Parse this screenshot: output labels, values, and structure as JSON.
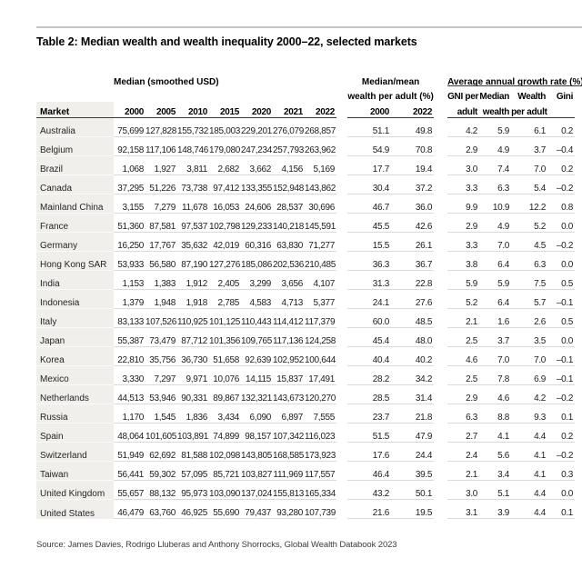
{
  "page": {
    "title": "Table 2: Median wealth and wealth inequality 2000–22, selected markets",
    "source": "Source: James Davies, Rodrigo Lluberas and Anthony Shorrocks, Global Wealth Databook 2023"
  },
  "colors": {
    "market_column_bg": "#f1efec",
    "header_rule": "#3a3a3a",
    "row_separator": "#dcdad7",
    "top_rule": "#c7c6c4"
  },
  "table": {
    "groups": {
      "median": "Median (smoothed USD)",
      "median_mean_line1": "Median/mean",
      "median_mean_line2": "wealth per adult (%)",
      "growth": "Average annual growth rate (%) 2000–22"
    },
    "columns": {
      "market": "Market",
      "median_years": [
        "2000",
        "2005",
        "2010",
        "2015",
        "2020",
        "2021",
        "2022"
      ],
      "mm_years": [
        "2000",
        "2022"
      ],
      "growth_line1": [
        "GNI per",
        "Median",
        "Wealth",
        "Gini"
      ],
      "growth_line2": [
        "adult",
        "wealth",
        "per adult",
        ""
      ]
    },
    "rows": [
      {
        "market": "Australia",
        "median": [
          "75,699",
          "127,828",
          "155,732",
          "185,003",
          "229,201",
          "276,079",
          "268,857"
        ],
        "median_mean": [
          "51.1",
          "49.8"
        ],
        "growth": [
          "4.2",
          "5.9",
          "6.1",
          "0.2"
        ]
      },
      {
        "market": "Belgium",
        "median": [
          "92,158",
          "117,106",
          "148,746",
          "179,080",
          "247,234",
          "257,793",
          "263,962"
        ],
        "median_mean": [
          "54.9",
          "70.8"
        ],
        "growth": [
          "2.9",
          "4.9",
          "3.7",
          "–0.4"
        ]
      },
      {
        "market": "Brazil",
        "median": [
          "1,068",
          "1,927",
          "3,811",
          "2,682",
          "3,662",
          "4,156",
          "5,169"
        ],
        "median_mean": [
          "17.7",
          "19.4"
        ],
        "growth": [
          "3.0",
          "7.4",
          "7.0",
          "0.2"
        ]
      },
      {
        "market": "Canada",
        "median": [
          "37,295",
          "51,226",
          "73,738",
          "97,412",
          "133,355",
          "152,948",
          "143,862"
        ],
        "median_mean": [
          "30.4",
          "37.2"
        ],
        "growth": [
          "3.3",
          "6.3",
          "5.4",
          "–0.2"
        ]
      },
      {
        "market": "Mainland China",
        "median": [
          "3,155",
          "7,279",
          "11,678",
          "16,053",
          "24,606",
          "28,537",
          "30,696"
        ],
        "median_mean": [
          "46.7",
          "36.0"
        ],
        "growth": [
          "9.9",
          "10.9",
          "12.2",
          "0.8"
        ]
      },
      {
        "market": "France",
        "median": [
          "51,360",
          "87,581",
          "97,537",
          "102,798",
          "129,233",
          "140,218",
          "145,591"
        ],
        "median_mean": [
          "45.5",
          "42.6"
        ],
        "growth": [
          "2.9",
          "4.9",
          "5.2",
          "0.0"
        ]
      },
      {
        "market": "Germany",
        "median": [
          "16,250",
          "17,767",
          "35,632",
          "42,019",
          "60,316",
          "63,830",
          "71,277"
        ],
        "median_mean": [
          "15.5",
          "26.1"
        ],
        "growth": [
          "3.3",
          "7.0",
          "4.5",
          "–0.2"
        ]
      },
      {
        "market": "Hong Kong SAR",
        "median": [
          "53,933",
          "56,580",
          "87,190",
          "127,276",
          "185,086",
          "202,536",
          "210,485"
        ],
        "median_mean": [
          "36.3",
          "36.7"
        ],
        "growth": [
          "3.8",
          "6.4",
          "6.3",
          "0.0"
        ]
      },
      {
        "market": "India",
        "median": [
          "1,153",
          "1,383",
          "1,912",
          "2,405",
          "3,299",
          "3,656",
          "4,107"
        ],
        "median_mean": [
          "31.3",
          "22.8"
        ],
        "growth": [
          "5.9",
          "5.9",
          "7.5",
          "0.5"
        ]
      },
      {
        "market": "Indonesia",
        "median": [
          "1,379",
          "1,948",
          "1,918",
          "2,785",
          "4,583",
          "4,713",
          "5,377"
        ],
        "median_mean": [
          "24.1",
          "27.6"
        ],
        "growth": [
          "5.2",
          "6.4",
          "5.7",
          "–0.1"
        ]
      },
      {
        "market": "Italy",
        "median": [
          "83,133",
          "107,526",
          "110,925",
          "101,125",
          "110,443",
          "114,412",
          "117,379"
        ],
        "median_mean": [
          "60.0",
          "48.5"
        ],
        "growth": [
          "2.1",
          "1.6",
          "2.6",
          "0.5"
        ]
      },
      {
        "market": "Japan",
        "median": [
          "55,387",
          "73,479",
          "87,712",
          "101,356",
          "109,765",
          "117,136",
          "124,258"
        ],
        "median_mean": [
          "45.4",
          "48.0"
        ],
        "growth": [
          "2.5",
          "3.7",
          "3.5",
          "0.0"
        ]
      },
      {
        "market": "Korea",
        "median": [
          "22,810",
          "35,756",
          "36,730",
          "51,658",
          "92,639",
          "102,952",
          "100,644"
        ],
        "median_mean": [
          "40.4",
          "40.2"
        ],
        "growth": [
          "4.6",
          "7.0",
          "7.0",
          "–0.1"
        ]
      },
      {
        "market": "Mexico",
        "median": [
          "3,330",
          "7,297",
          "9,971",
          "10,076",
          "14,115",
          "15,837",
          "17,491"
        ],
        "median_mean": [
          "28.2",
          "34.2"
        ],
        "growth": [
          "2.5",
          "7.8",
          "6.9",
          "–0.1"
        ]
      },
      {
        "market": "Netherlands",
        "median": [
          "44,513",
          "53,946",
          "90,331",
          "89,867",
          "132,321",
          "143,673",
          "120,270"
        ],
        "median_mean": [
          "28.5",
          "31.4"
        ],
        "growth": [
          "2.9",
          "4.6",
          "4.2",
          "–0.2"
        ]
      },
      {
        "market": "Russia",
        "median": [
          "1,170",
          "1,545",
          "1,836",
          "3,434",
          "6,090",
          "6,897",
          "7,555"
        ],
        "median_mean": [
          "23.7",
          "21.8"
        ],
        "growth": [
          "6.3",
          "8.8",
          "9.3",
          "0.1"
        ]
      },
      {
        "market": "Spain",
        "median": [
          "48,064",
          "101,605",
          "103,891",
          "74,899",
          "98,157",
          "107,342",
          "116,023"
        ],
        "median_mean": [
          "51.5",
          "47.9"
        ],
        "growth": [
          "2.7",
          "4.1",
          "4.4",
          "0.2"
        ]
      },
      {
        "market": "Switzerland",
        "median": [
          "51,949",
          "62,692",
          "81,588",
          "102,098",
          "143,805",
          "168,585",
          "173,923"
        ],
        "median_mean": [
          "17.6",
          "24.4"
        ],
        "growth": [
          "2.4",
          "5.6",
          "4.1",
          "–0.2"
        ]
      },
      {
        "market": "Taiwan",
        "median": [
          "56,441",
          "59,302",
          "57,095",
          "85,721",
          "103,827",
          "111,969",
          "117,557"
        ],
        "median_mean": [
          "46.4",
          "39.5"
        ],
        "growth": [
          "2.1",
          "3.4",
          "4.1",
          "0.3"
        ]
      },
      {
        "market": "United Kingdom",
        "median": [
          "55,657",
          "88,132",
          "95,973",
          "103,090",
          "137,024",
          "155,813",
          "165,334"
        ],
        "median_mean": [
          "43.2",
          "50.1"
        ],
        "growth": [
          "3.0",
          "5.1",
          "4.4",
          "0.0"
        ]
      },
      {
        "market": "United States",
        "median": [
          "46,479",
          "63,760",
          "46,925",
          "55,690",
          "79,437",
          "93,280",
          "107,739"
        ],
        "median_mean": [
          "21.6",
          "19.5"
        ],
        "growth": [
          "3.1",
          "3.9",
          "4.4",
          "0.1"
        ]
      }
    ]
  }
}
